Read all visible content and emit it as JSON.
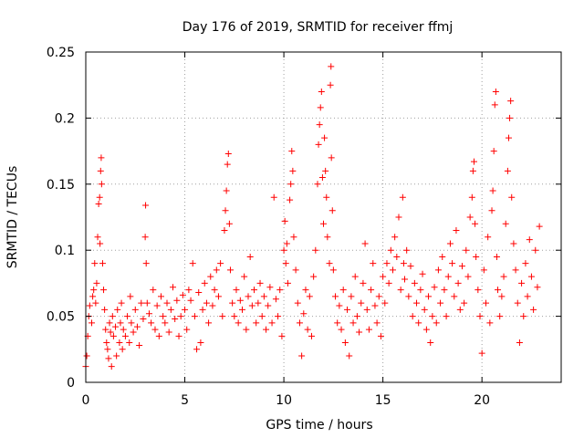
{
  "chart_data": {
    "type": "scatter",
    "title": "Day 176 of 2019, SRMTID for receiver ffmj",
    "xlabel": "GPS time / hours",
    "ylabel": "SRMTID / TECUs",
    "xlim": [
      0,
      24
    ],
    "ylim": [
      0,
      0.25
    ],
    "xticks": [
      {
        "value": 0,
        "label": "0"
      },
      {
        "value": 5,
        "label": "5"
      },
      {
        "value": 10,
        "label": "10"
      },
      {
        "value": 15,
        "label": "15"
      },
      {
        "value": 20,
        "label": "20"
      }
    ],
    "yticks": [
      {
        "value": 0,
        "label": "0"
      },
      {
        "value": 0.05,
        "label": "0.05"
      },
      {
        "value": 0.1,
        "label": "0.1"
      },
      {
        "value": 0.15,
        "label": "0.15"
      },
      {
        "value": 0.2,
        "label": "0.2"
      },
      {
        "value": 0.25,
        "label": "0.25"
      }
    ],
    "grid": true,
    "legend": "none",
    "marker": "plus",
    "color": "#ff0000",
    "series": [
      {
        "points": [
          [
            0.0,
            0.012
          ],
          [
            0.05,
            0.02
          ],
          [
            0.1,
            0.035
          ],
          [
            0.15,
            0.05
          ],
          [
            0.2,
            0.058
          ],
          [
            0.3,
            0.045
          ],
          [
            0.35,
            0.065
          ],
          [
            0.4,
            0.07
          ],
          [
            0.45,
            0.09
          ],
          [
            0.5,
            0.06
          ],
          [
            0.55,
            0.075
          ],
          [
            0.6,
            0.11
          ],
          [
            0.65,
            0.135
          ],
          [
            0.7,
            0.14
          ],
          [
            0.72,
            0.105
          ],
          [
            0.75,
            0.16
          ],
          [
            0.78,
            0.17
          ],
          [
            0.8,
            0.15
          ],
          [
            0.85,
            0.09
          ],
          [
            0.9,
            0.07
          ],
          [
            0.95,
            0.055
          ],
          [
            1.0,
            0.04
          ],
          [
            1.05,
            0.03
          ],
          [
            1.1,
            0.025
          ],
          [
            1.15,
            0.018
          ],
          [
            1.2,
            0.045
          ],
          [
            1.25,
            0.038
          ],
          [
            1.3,
            0.012
          ],
          [
            1.35,
            0.05
          ],
          [
            1.4,
            0.035
          ],
          [
            1.5,
            0.042
          ],
          [
            1.55,
            0.02
          ],
          [
            1.6,
            0.055
          ],
          [
            1.7,
            0.03
          ],
          [
            1.75,
            0.045
          ],
          [
            1.8,
            0.06
          ],
          [
            1.85,
            0.025
          ],
          [
            1.9,
            0.04
          ],
          [
            2.0,
            0.035
          ],
          [
            2.1,
            0.05
          ],
          [
            2.2,
            0.03
          ],
          [
            2.25,
            0.065
          ],
          [
            2.3,
            0.045
          ],
          [
            2.4,
            0.038
          ],
          [
            2.5,
            0.055
          ],
          [
            2.6,
            0.042
          ],
          [
            2.7,
            0.028
          ],
          [
            2.8,
            0.06
          ],
          [
            2.9,
            0.048
          ],
          [
            3.0,
            0.11
          ],
          [
            3.02,
            0.134
          ],
          [
            3.05,
            0.09
          ],
          [
            3.1,
            0.06
          ],
          [
            3.2,
            0.052
          ],
          [
            3.3,
            0.045
          ],
          [
            3.4,
            0.07
          ],
          [
            3.5,
            0.04
          ],
          [
            3.6,
            0.058
          ],
          [
            3.7,
            0.035
          ],
          [
            3.8,
            0.065
          ],
          [
            3.9,
            0.05
          ],
          [
            4.0,
            0.045
          ],
          [
            4.1,
            0.06
          ],
          [
            4.2,
            0.038
          ],
          [
            4.3,
            0.055
          ],
          [
            4.4,
            0.072
          ],
          [
            4.5,
            0.048
          ],
          [
            4.6,
            0.062
          ],
          [
            4.7,
            0.035
          ],
          [
            4.8,
            0.05
          ],
          [
            4.9,
            0.066
          ],
          [
            5.0,
            0.055
          ],
          [
            5.1,
            0.04
          ],
          [
            5.2,
            0.07
          ],
          [
            5.3,
            0.062
          ],
          [
            5.4,
            0.09
          ],
          [
            5.5,
            0.05
          ],
          [
            5.6,
            0.025
          ],
          [
            5.7,
            0.068
          ],
          [
            5.8,
            0.03
          ],
          [
            5.9,
            0.055
          ],
          [
            6.0,
            0.075
          ],
          [
            6.1,
            0.06
          ],
          [
            6.2,
            0.045
          ],
          [
            6.3,
            0.08
          ],
          [
            6.4,
            0.058
          ],
          [
            6.5,
            0.07
          ],
          [
            6.6,
            0.085
          ],
          [
            6.7,
            0.065
          ],
          [
            6.8,
            0.09
          ],
          [
            6.9,
            0.05
          ],
          [
            7.0,
            0.115
          ],
          [
            7.05,
            0.13
          ],
          [
            7.1,
            0.145
          ],
          [
            7.15,
            0.165
          ],
          [
            7.2,
            0.173
          ],
          [
            7.25,
            0.12
          ],
          [
            7.3,
            0.085
          ],
          [
            7.4,
            0.06
          ],
          [
            7.5,
            0.05
          ],
          [
            7.6,
            0.07
          ],
          [
            7.7,
            0.045
          ],
          [
            7.8,
            0.062
          ],
          [
            7.9,
            0.055
          ],
          [
            8.0,
            0.08
          ],
          [
            8.1,
            0.04
          ],
          [
            8.2,
            0.065
          ],
          [
            8.3,
            0.095
          ],
          [
            8.4,
            0.058
          ],
          [
            8.5,
            0.07
          ],
          [
            8.6,
            0.045
          ],
          [
            8.7,
            0.06
          ],
          [
            8.8,
            0.075
          ],
          [
            8.9,
            0.05
          ],
          [
            9.0,
            0.065
          ],
          [
            9.1,
            0.04
          ],
          [
            9.2,
            0.058
          ],
          [
            9.3,
            0.072
          ],
          [
            9.4,
            0.045
          ],
          [
            9.5,
            0.14
          ],
          [
            9.6,
            0.063
          ],
          [
            9.7,
            0.05
          ],
          [
            9.8,
            0.07
          ],
          [
            9.9,
            0.035
          ],
          [
            10.0,
            0.1
          ],
          [
            10.05,
            0.122
          ],
          [
            10.1,
            0.09
          ],
          [
            10.15,
            0.105
          ],
          [
            10.2,
            0.075
          ],
          [
            10.3,
            0.138
          ],
          [
            10.35,
            0.15
          ],
          [
            10.4,
            0.175
          ],
          [
            10.45,
            0.16
          ],
          [
            10.5,
            0.11
          ],
          [
            10.6,
            0.085
          ],
          [
            10.7,
            0.06
          ],
          [
            10.8,
            0.045
          ],
          [
            10.9,
            0.02
          ],
          [
            11.0,
            0.052
          ],
          [
            11.1,
            0.07
          ],
          [
            11.2,
            0.04
          ],
          [
            11.3,
            0.065
          ],
          [
            11.4,
            0.035
          ],
          [
            11.5,
            0.08
          ],
          [
            11.6,
            0.1
          ],
          [
            11.7,
            0.15
          ],
          [
            11.75,
            0.18
          ],
          [
            11.8,
            0.195
          ],
          [
            11.85,
            0.208
          ],
          [
            11.9,
            0.22
          ],
          [
            11.95,
            0.155
          ],
          [
            12.0,
            0.12
          ],
          [
            12.05,
            0.185
          ],
          [
            12.1,
            0.16
          ],
          [
            12.15,
            0.14
          ],
          [
            12.2,
            0.11
          ],
          [
            12.3,
            0.09
          ],
          [
            12.35,
            0.225
          ],
          [
            12.38,
            0.239
          ],
          [
            12.4,
            0.17
          ],
          [
            12.45,
            0.13
          ],
          [
            12.5,
            0.085
          ],
          [
            12.6,
            0.065
          ],
          [
            12.7,
            0.045
          ],
          [
            12.8,
            0.058
          ],
          [
            12.9,
            0.04
          ],
          [
            13.0,
            0.07
          ],
          [
            13.1,
            0.03
          ],
          [
            13.2,
            0.055
          ],
          [
            13.3,
            0.02
          ],
          [
            13.4,
            0.065
          ],
          [
            13.5,
            0.045
          ],
          [
            13.6,
            0.08
          ],
          [
            13.7,
            0.05
          ],
          [
            13.8,
            0.038
          ],
          [
            13.9,
            0.06
          ],
          [
            14.0,
            0.075
          ],
          [
            14.1,
            0.105
          ],
          [
            14.2,
            0.055
          ],
          [
            14.3,
            0.04
          ],
          [
            14.4,
            0.07
          ],
          [
            14.5,
            0.09
          ],
          [
            14.6,
            0.058
          ],
          [
            14.7,
            0.045
          ],
          [
            14.8,
            0.065
          ],
          [
            14.9,
            0.035
          ],
          [
            15.0,
            0.08
          ],
          [
            15.1,
            0.06
          ],
          [
            15.2,
            0.09
          ],
          [
            15.3,
            0.075
          ],
          [
            15.4,
            0.1
          ],
          [
            15.5,
            0.085
          ],
          [
            15.6,
            0.11
          ],
          [
            15.7,
            0.095
          ],
          [
            15.8,
            0.125
          ],
          [
            15.9,
            0.07
          ],
          [
            16.0,
            0.14
          ],
          [
            16.05,
            0.09
          ],
          [
            16.1,
            0.078
          ],
          [
            16.2,
            0.1
          ],
          [
            16.3,
            0.065
          ],
          [
            16.4,
            0.088
          ],
          [
            16.5,
            0.05
          ],
          [
            16.6,
            0.075
          ],
          [
            16.7,
            0.06
          ],
          [
            16.8,
            0.045
          ],
          [
            16.9,
            0.07
          ],
          [
            17.0,
            0.082
          ],
          [
            17.1,
            0.055
          ],
          [
            17.2,
            0.04
          ],
          [
            17.3,
            0.065
          ],
          [
            17.4,
            0.03
          ],
          [
            17.5,
            0.05
          ],
          [
            17.6,
            0.072
          ],
          [
            17.7,
            0.045
          ],
          [
            17.8,
            0.085
          ],
          [
            17.9,
            0.06
          ],
          [
            18.0,
            0.095
          ],
          [
            18.1,
            0.07
          ],
          [
            18.2,
            0.05
          ],
          [
            18.3,
            0.08
          ],
          [
            18.4,
            0.105
          ],
          [
            18.5,
            0.09
          ],
          [
            18.6,
            0.065
          ],
          [
            18.7,
            0.115
          ],
          [
            18.8,
            0.075
          ],
          [
            18.9,
            0.055
          ],
          [
            19.0,
            0.088
          ],
          [
            19.1,
            0.06
          ],
          [
            19.2,
            0.1
          ],
          [
            19.3,
            0.08
          ],
          [
            19.4,
            0.125
          ],
          [
            19.5,
            0.14
          ],
          [
            19.55,
            0.16
          ],
          [
            19.6,
            0.167
          ],
          [
            19.65,
            0.12
          ],
          [
            19.7,
            0.095
          ],
          [
            19.8,
            0.07
          ],
          [
            19.9,
            0.05
          ],
          [
            20.0,
            0.022
          ],
          [
            20.1,
            0.085
          ],
          [
            20.2,
            0.06
          ],
          [
            20.3,
            0.11
          ],
          [
            20.4,
            0.045
          ],
          [
            20.5,
            0.13
          ],
          [
            20.55,
            0.145
          ],
          [
            20.6,
            0.175
          ],
          [
            20.65,
            0.21
          ],
          [
            20.7,
            0.22
          ],
          [
            20.75,
            0.095
          ],
          [
            20.8,
            0.07
          ],
          [
            20.9,
            0.05
          ],
          [
            21.0,
            0.065
          ],
          [
            21.1,
            0.08
          ],
          [
            21.2,
            0.12
          ],
          [
            21.3,
            0.16
          ],
          [
            21.35,
            0.185
          ],
          [
            21.4,
            0.2
          ],
          [
            21.45,
            0.213
          ],
          [
            21.5,
            0.14
          ],
          [
            21.6,
            0.105
          ],
          [
            21.7,
            0.085
          ],
          [
            21.8,
            0.06
          ],
          [
            21.9,
            0.03
          ],
          [
            22.0,
            0.075
          ],
          [
            22.1,
            0.05
          ],
          [
            22.2,
            0.09
          ],
          [
            22.3,
            0.065
          ],
          [
            22.4,
            0.108
          ],
          [
            22.5,
            0.08
          ],
          [
            22.6,
            0.055
          ],
          [
            22.7,
            0.1
          ],
          [
            22.8,
            0.072
          ],
          [
            22.9,
            0.118
          ]
        ]
      }
    ]
  }
}
